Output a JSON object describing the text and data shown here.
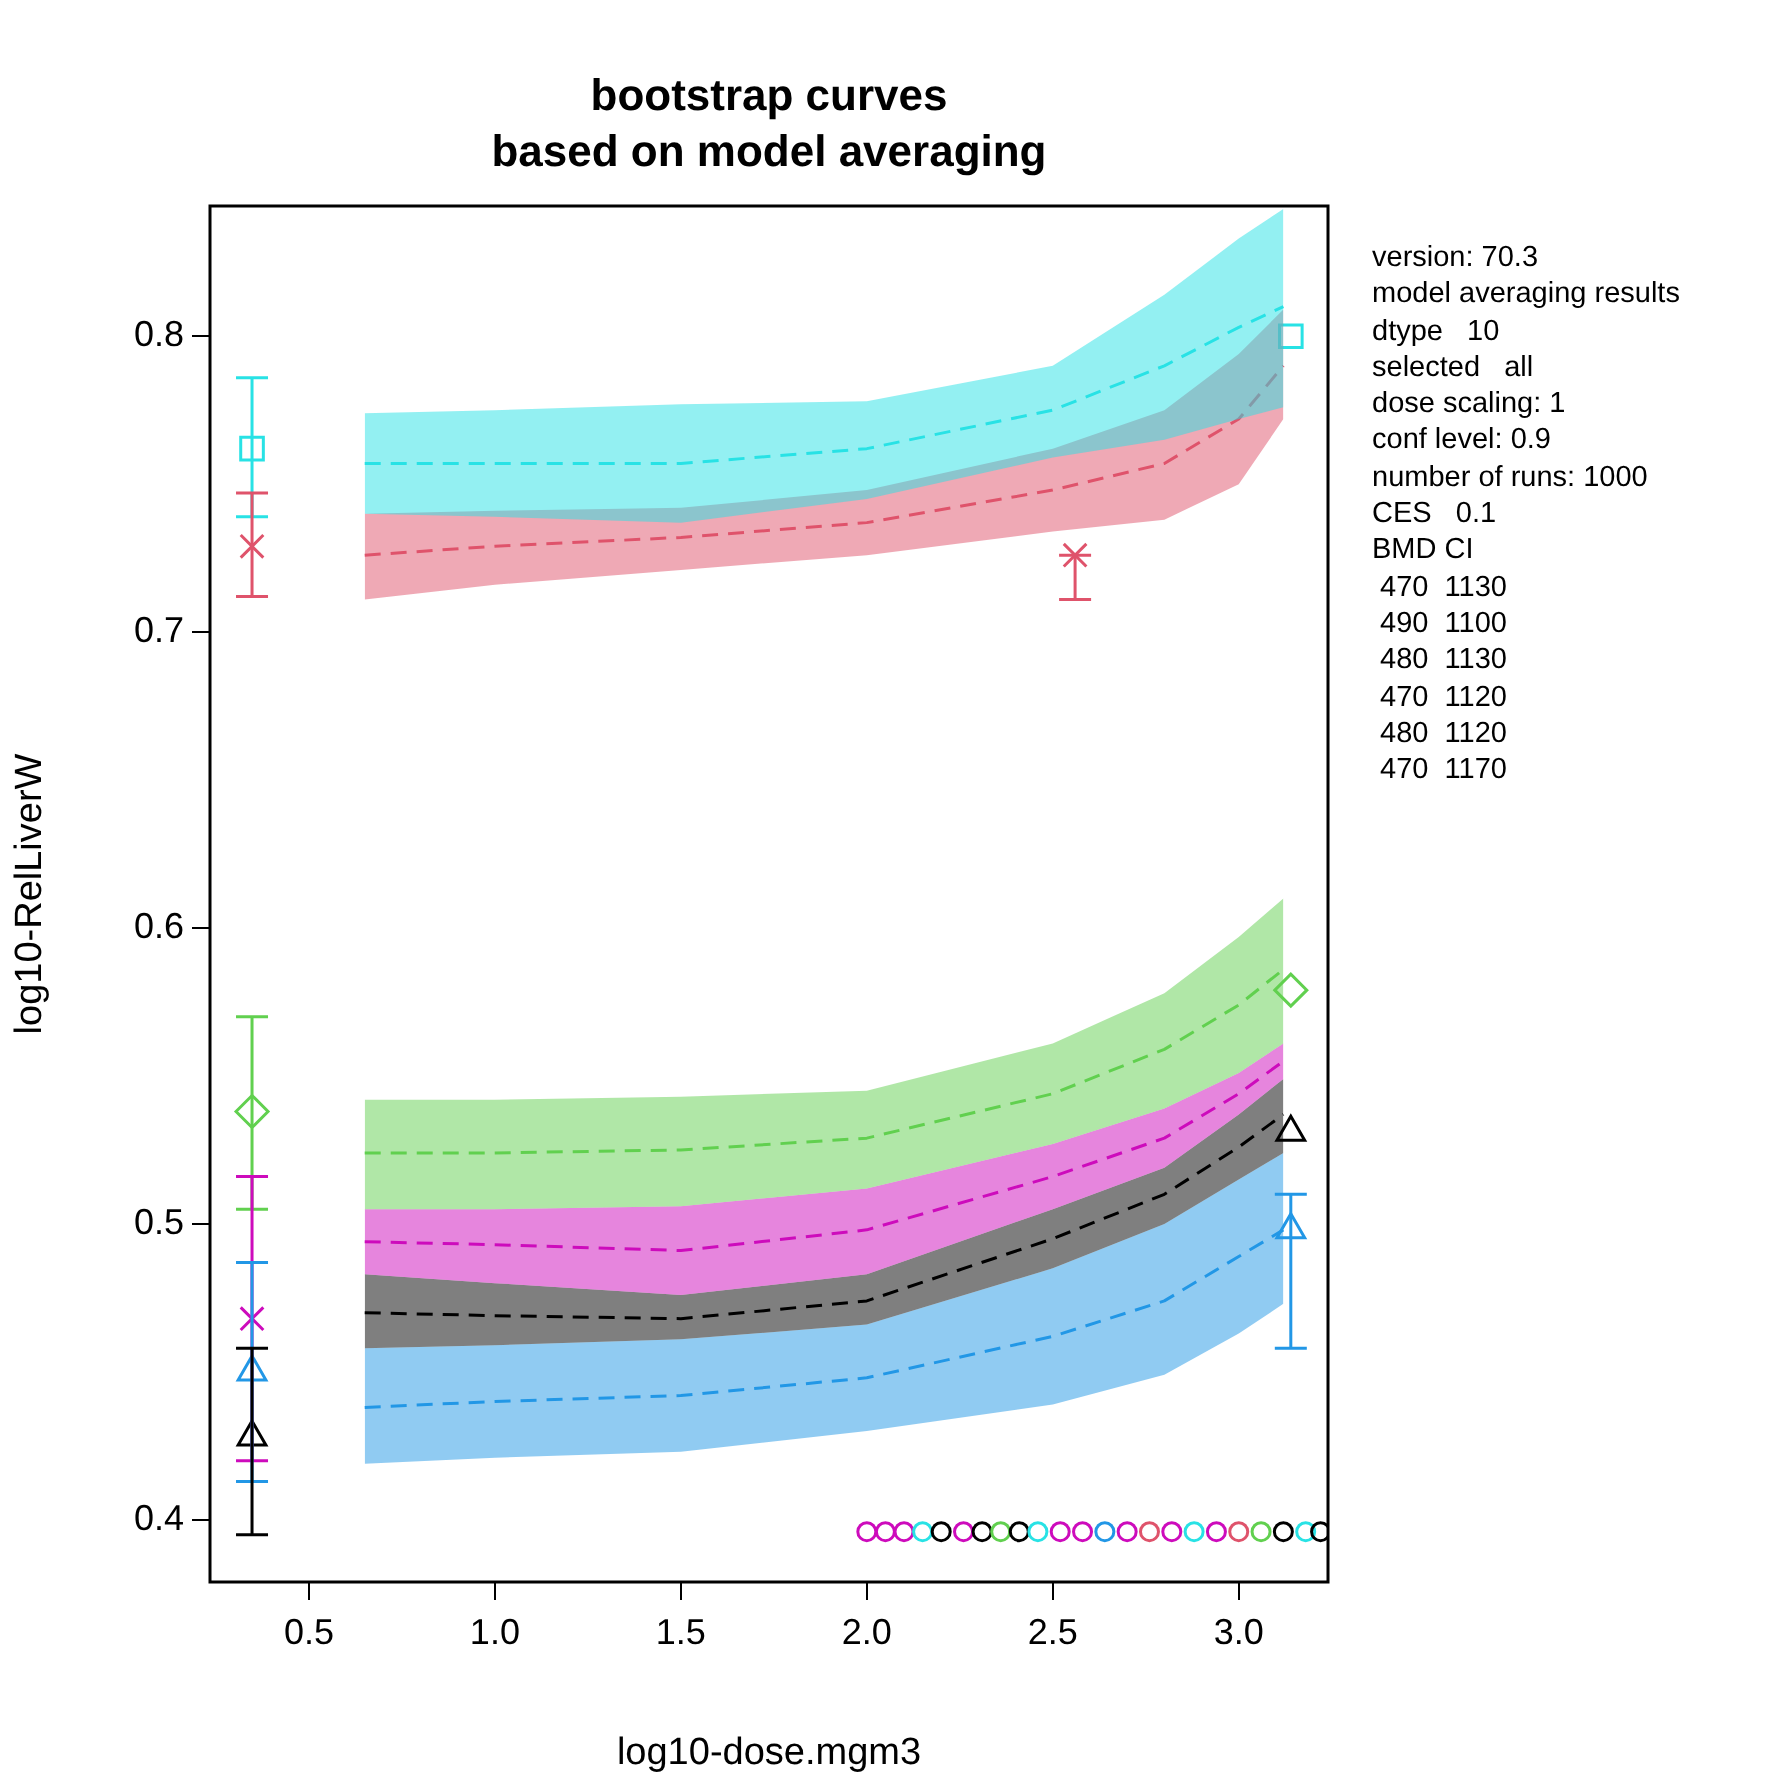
{
  "chart_data": {
    "type": "line",
    "title": "bootstrap curves",
    "subtitle": "based on model averaging",
    "xlabel": "log10-dose.mgm3",
    "ylabel": "log10-RelLiverW",
    "xlim": [
      0.234,
      3.24
    ],
    "xticks": [
      0.5,
      {
        "value": 1,
        "label": "1.0"
      },
      1.5,
      {
        "value": 2,
        "label": "2.0"
      },
      2.5,
      {
        "value": 3,
        "label": "3.0"
      }
    ],
    "ylim": [
      0.379,
      0.844
    ],
    "yticks": [
      0.4,
      0.5,
      0.6,
      0.7,
      0.8
    ],
    "grid": false,
    "legend": false,
    "line_style": "dashed",
    "annotations": [
      "version: 70.3",
      "model averaging results",
      "dtype   10",
      "selected   all",
      "dose scaling: 1",
      "conf level: 0.9",
      "number of runs: 1000",
      "CES   0.1",
      "BMD CI",
      " 470  1130",
      " 490  1100",
      " 480  1130",
      " 470  1120",
      " 480  1120",
      " 470  1170"
    ],
    "series": [
      {
        "color": "#28e2e5",
        "marker": "none",
        "x": [
          0.65,
          1.0,
          1.5,
          2.0,
          2.5,
          2.8,
          3.0,
          3.12
        ],
        "values": [
          0.757,
          0.757,
          0.757,
          0.762,
          0.775,
          0.79,
          0.803,
          0.81
        ],
        "lower": [
          0.74,
          0.739,
          0.737,
          0.745,
          0.759,
          0.765,
          0.772,
          0.776
        ],
        "upper": [
          0.774,
          0.775,
          0.777,
          0.778,
          0.79,
          0.814,
          0.833,
          0.843
        ]
      },
      {
        "color": "#df536b",
        "marker": "none",
        "x": [
          0.65,
          1.0,
          1.5,
          2.0,
          2.5,
          2.8,
          3.0,
          3.12
        ],
        "values": [
          0.726,
          0.729,
          0.732,
          0.737,
          0.748,
          0.757,
          0.772,
          0.79
        ],
        "lower": [
          0.711,
          0.716,
          0.721,
          0.726,
          0.734,
          0.738,
          0.75,
          0.772
        ],
        "upper": [
          0.74,
          0.741,
          0.742,
          0.748,
          0.762,
          0.775,
          0.794,
          0.809
        ]
      },
      {
        "color": "#61d04f",
        "marker": "none",
        "x": [
          0.65,
          1.0,
          1.5,
          2.0,
          2.5,
          2.8,
          3.0,
          3.12
        ],
        "values": [
          0.524,
          0.524,
          0.525,
          0.529,
          0.544,
          0.559,
          0.574,
          0.586
        ],
        "lower": [
          0.505,
          0.505,
          0.506,
          0.512,
          0.527,
          0.539,
          0.551,
          0.561
        ],
        "upper": [
          0.542,
          0.542,
          0.543,
          0.545,
          0.561,
          0.578,
          0.597,
          0.61
        ]
      },
      {
        "color": "#cd0bbc",
        "marker": "none",
        "x": [
          0.65,
          1.0,
          1.5,
          2.0,
          2.5,
          2.8,
          3.0,
          3.12
        ],
        "values": [
          0.494,
          0.493,
          0.491,
          0.498,
          0.516,
          0.529,
          0.544,
          0.555
        ],
        "lower": [
          0.483,
          0.48,
          0.476,
          0.483,
          0.505,
          0.519,
          0.537,
          0.549
        ],
        "upper": [
          0.505,
          0.505,
          0.506,
          0.512,
          0.527,
          0.539,
          0.551,
          0.561
        ]
      },
      {
        "color": "#000000",
        "marker": "none",
        "x": [
          0.65,
          1.0,
          1.5,
          2.0,
          2.5,
          2.8,
          3.0,
          3.12
        ],
        "values": [
          0.47,
          0.469,
          0.468,
          0.474,
          0.495,
          0.51,
          0.526,
          0.537
        ],
        "lower": [
          0.458,
          0.459,
          0.461,
          0.466,
          0.485,
          0.5,
          0.515,
          0.524
        ],
        "upper": [
          0.483,
          0.48,
          0.476,
          0.483,
          0.505,
          0.519,
          0.537,
          0.549
        ]
      },
      {
        "color": "#2297e6",
        "marker": "none",
        "x": [
          0.65,
          1.0,
          1.5,
          2.0,
          2.5,
          2.8,
          3.0,
          3.12
        ],
        "values": [
          0.438,
          0.44,
          0.442,
          0.448,
          0.462,
          0.474,
          0.489,
          0.498
        ],
        "lower": [
          0.419,
          0.421,
          0.423,
          0.43,
          0.439,
          0.449,
          0.463,
          0.473
        ],
        "upper": [
          0.458,
          0.459,
          0.461,
          0.466,
          0.485,
          0.5,
          0.515,
          0.524
        ]
      },
      {
        "type": "scatter",
        "color": "#28e2e5",
        "marker": "square",
        "x": [
          0.347,
          3.14
        ],
        "values": [
          0.762,
          0.8
        ],
        "errors": [
          [
            0.739,
            0.786
          ],
          null
        ]
      },
      {
        "type": "scatter",
        "color": "#df536b",
        "marker": "cross",
        "x": [
          0.347,
          2.56
        ],
        "values": [
          0.729,
          0.726
        ],
        "errors": [
          [
            0.712,
            0.747
          ],
          [
            0.711,
            0.726
          ]
        ]
      },
      {
        "type": "scatter",
        "color": "#61d04f",
        "marker": "diamond",
        "x": [
          0.347,
          3.14
        ],
        "values": [
          0.538,
          0.579
        ],
        "errors": [
          [
            0.505,
            0.57
          ],
          null
        ]
      },
      {
        "type": "scatter",
        "color": "#cd0bbc",
        "marker": "cross",
        "x": [
          0.347
        ],
        "values": [
          0.468
        ],
        "errors": [
          [
            0.42,
            0.516
          ]
        ]
      },
      {
        "type": "scatter",
        "color": "#2297e6",
        "marker": "triangle",
        "x": [
          0.347,
          3.14
        ],
        "values": [
          0.45,
          0.498
        ],
        "errors": [
          [
            0.413,
            0.487
          ],
          [
            0.458,
            0.51
          ]
        ]
      },
      {
        "type": "scatter",
        "color": "#000000",
        "marker": "triangle",
        "x": [
          0.347,
          3.14
        ],
        "values": [
          0.428,
          0.531
        ],
        "errors": [
          [
            0.395,
            0.458
          ],
          null
        ]
      },
      {
        "type": "scatter",
        "marker": "circle",
        "x": [
          2.0,
          2.05,
          2.1,
          2.15,
          2.2,
          2.26,
          2.31,
          2.36,
          2.41,
          2.46,
          2.52,
          2.58,
          2.64,
          2.7,
          2.76,
          2.82,
          2.88,
          2.94,
          3.0,
          3.06,
          3.12,
          3.18,
          3.22
        ],
        "values": [
          0.396,
          0.396,
          0.396,
          0.396,
          0.396,
          0.396,
          0.396,
          0.396,
          0.396,
          0.396,
          0.396,
          0.396,
          0.396,
          0.396,
          0.396,
          0.396,
          0.396,
          0.396,
          0.396,
          0.396,
          0.396,
          0.396,
          0.396
        ],
        "colors": [
          "#cd0bbc",
          "#cd0bbc",
          "#cd0bbc",
          "#28e2e5",
          "#000000",
          "#cd0bbc",
          "#000000",
          "#61d04f",
          "#000000",
          "#28e2e5",
          "#cd0bbc",
          "#cd0bbc",
          "#2297e6",
          "#cd0bbc",
          "#df536b",
          "#cd0bbc",
          "#28e2e5",
          "#cd0bbc",
          "#df536b",
          "#61d04f",
          "#000000",
          "#28e2e5",
          "#000000"
        ]
      }
    ]
  }
}
